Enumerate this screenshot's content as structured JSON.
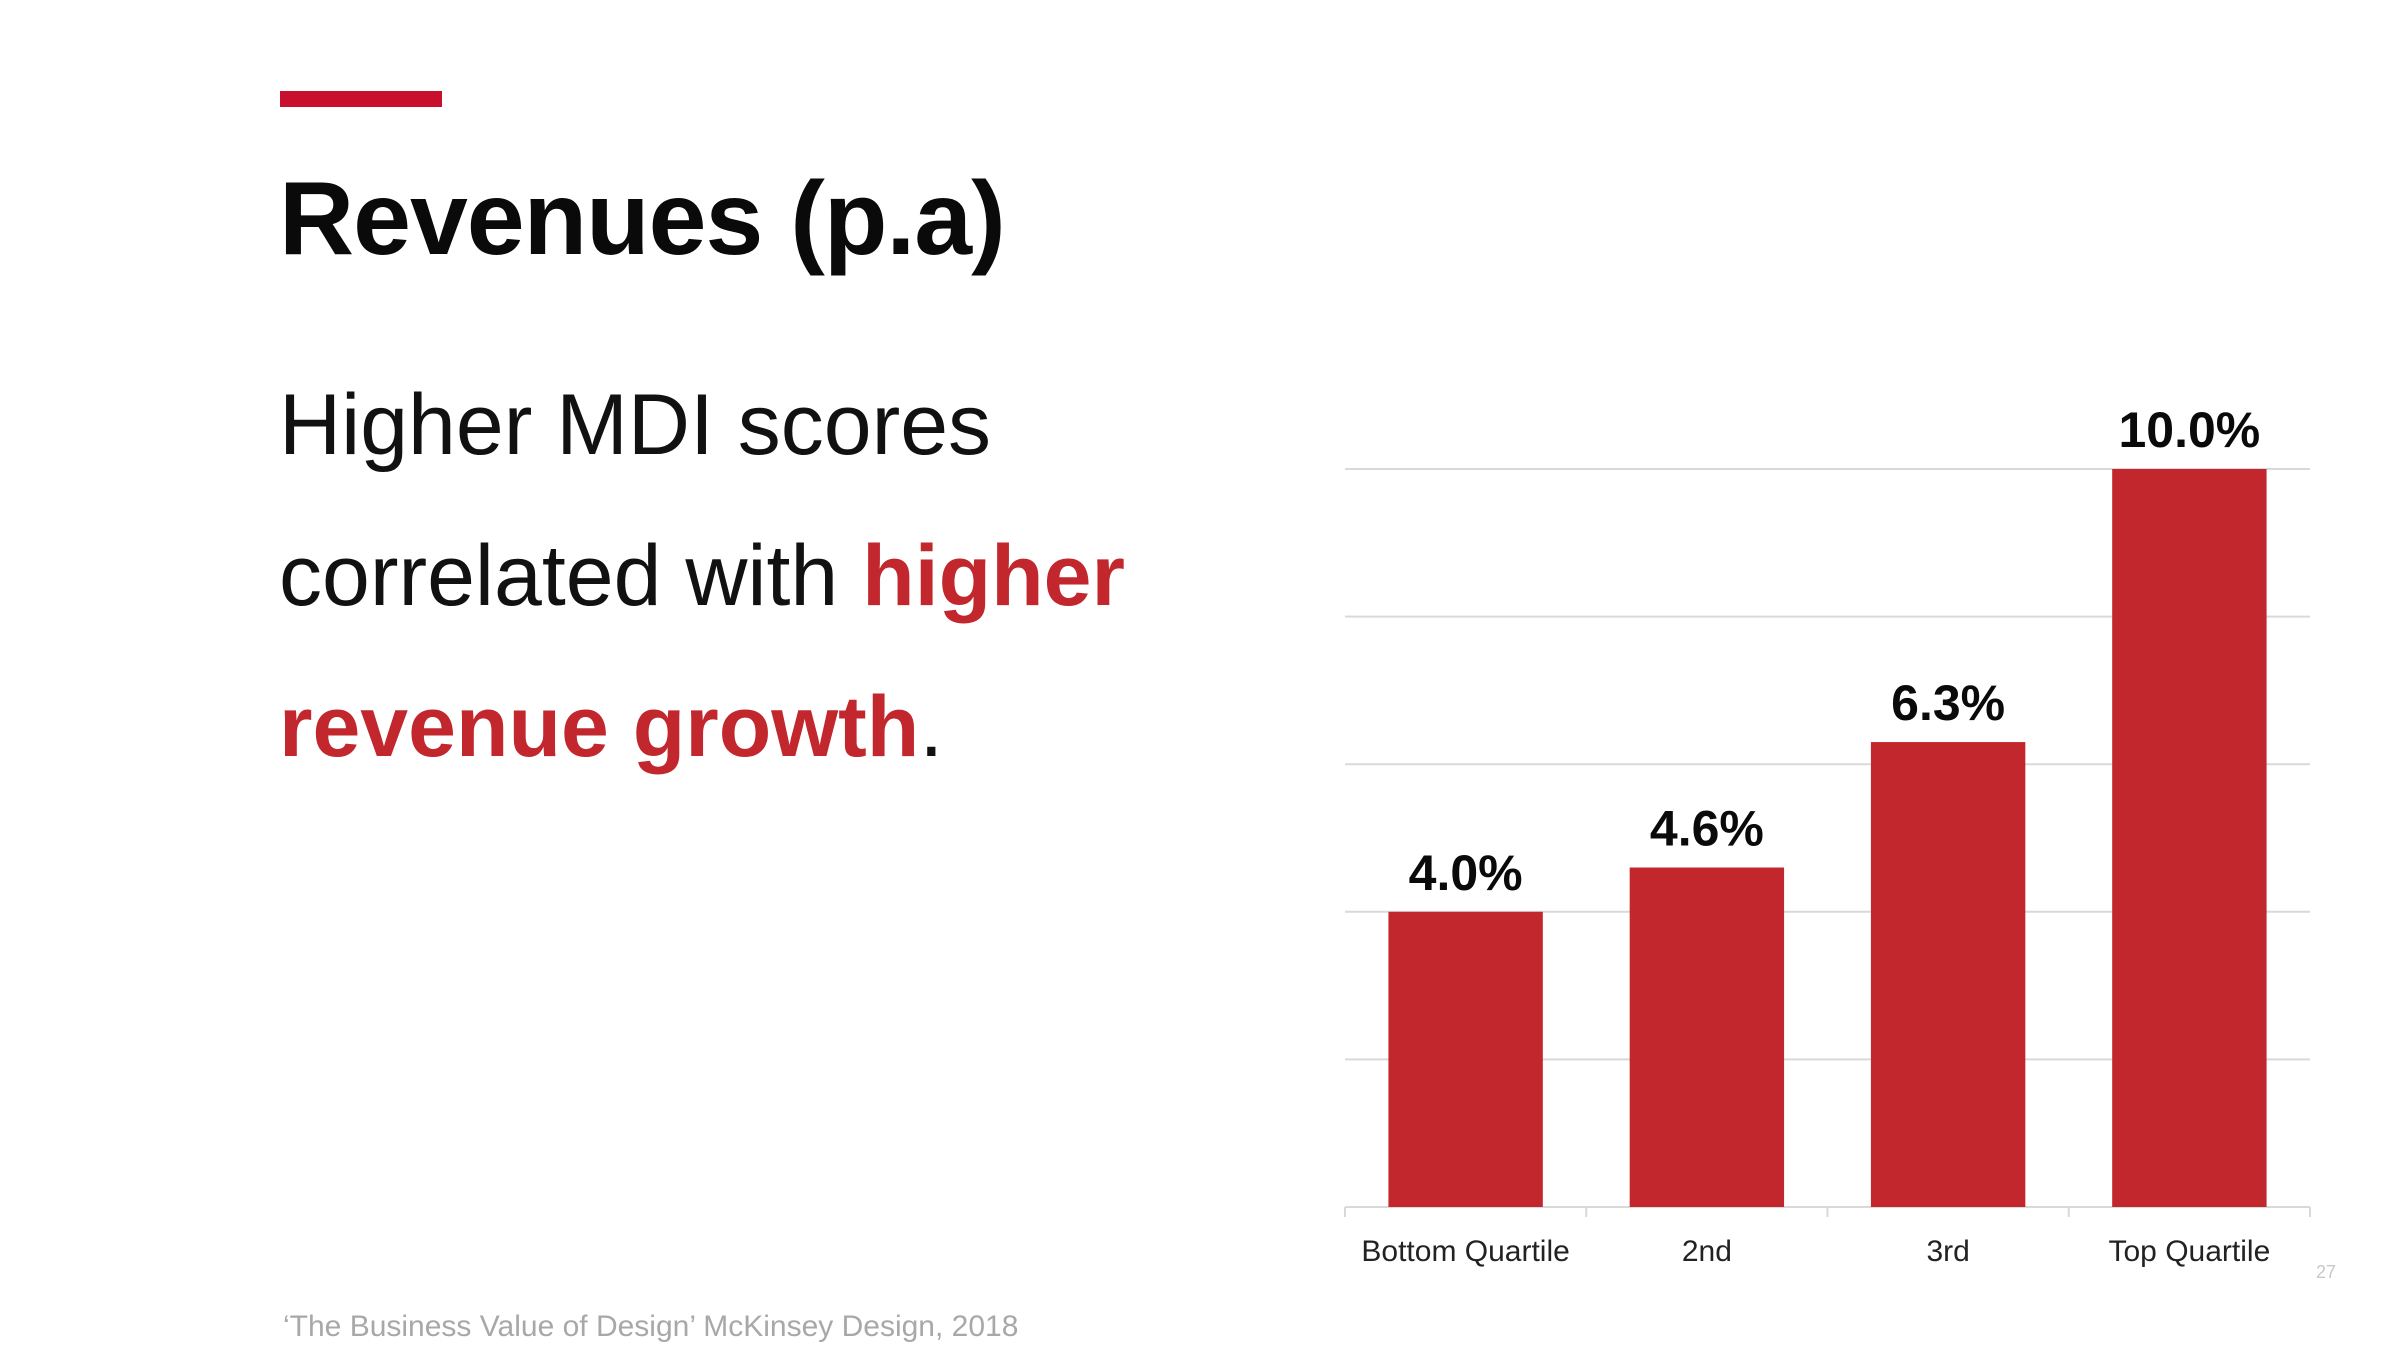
{
  "slide": {
    "title": "Revenues (p.a)",
    "headline": {
      "line1": "Higher MDI scores",
      "line2_plain": "correlated with ",
      "line2_emph": "higher",
      "line3_emph": "revenue growth",
      "line3_end": "."
    },
    "source": "‘The Business Value of Design’ McKinsey Design, 2018",
    "page_number": "27"
  },
  "colors": {
    "accent": "#c8102e",
    "bar": "#c1272d",
    "gridline": "#d9d9d9"
  },
  "chart_data": {
    "type": "bar",
    "categories": [
      "Bottom Quartile",
      "2nd",
      "3rd",
      "Top Quartile"
    ],
    "values": [
      4.0,
      4.6,
      6.3,
      10.0
    ],
    "data_labels": [
      "4.0%",
      "4.6%",
      "6.3%",
      "10.0%"
    ],
    "unit": "%",
    "title": "",
    "xlabel": "",
    "ylabel": "",
    "ylim": [
      0,
      10
    ],
    "y_axis_visible": false,
    "gridlines": true,
    "legend": "none"
  }
}
